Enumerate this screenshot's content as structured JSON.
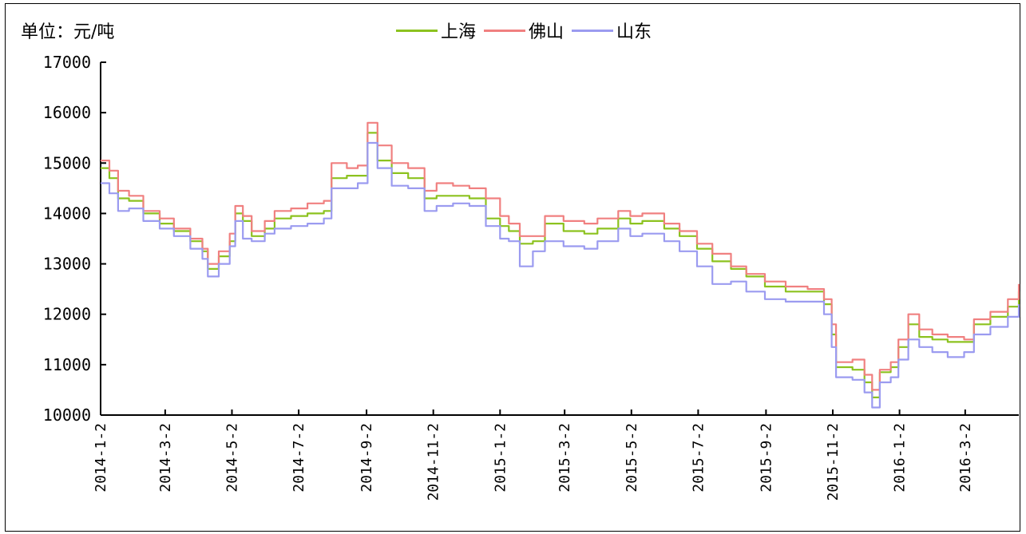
{
  "chart_data": {
    "type": "line",
    "unit_label": "单位：元/吨",
    "legend_placement": "top-center",
    "ylim": [
      10000,
      17000
    ],
    "yticks": [
      "17000",
      "16000",
      "15000",
      "14000",
      "13000",
      "12000",
      "11000",
      "10000"
    ],
    "xticks": [
      "2014-1-2",
      "2014-3-2",
      "2014-5-2",
      "2014-7-2",
      "2014-9-2",
      "2014-11-2",
      "2015-1-2",
      "2015-3-2",
      "2015-5-2",
      "2015-7-2",
      "2015-9-2",
      "2015-11-2",
      "2016-1-2",
      "2016-3-2"
    ],
    "x_end": "2016-4-20",
    "grid": false,
    "series": [
      {
        "name": "上海",
        "color": "#8cc21f",
        "points": [
          [
            "2014-1-2",
            14900
          ],
          [
            "2014-1-10",
            14700
          ],
          [
            "2014-1-18",
            14300
          ],
          [
            "2014-1-28",
            14250
          ],
          [
            "2014-2-10",
            14000
          ],
          [
            "2014-2-25",
            13800
          ],
          [
            "2014-3-10",
            13650
          ],
          [
            "2014-3-25",
            13450
          ],
          [
            "2014-4-5",
            13250
          ],
          [
            "2014-4-10",
            12900
          ],
          [
            "2014-4-20",
            13150
          ],
          [
            "2014-4-30",
            13450
          ],
          [
            "2014-5-5",
            14000
          ],
          [
            "2014-5-12",
            13850
          ],
          [
            "2014-5-20",
            13550
          ],
          [
            "2014-6-1",
            13700
          ],
          [
            "2014-6-10",
            13900
          ],
          [
            "2014-6-25",
            13950
          ],
          [
            "2014-7-10",
            14000
          ],
          [
            "2014-7-25",
            14050
          ],
          [
            "2014-8-1",
            14700
          ],
          [
            "2014-8-15",
            14750
          ],
          [
            "2014-8-25",
            14750
          ],
          [
            "2014-9-3",
            15600
          ],
          [
            "2014-9-12",
            15050
          ],
          [
            "2014-9-25",
            14800
          ],
          [
            "2014-10-10",
            14700
          ],
          [
            "2014-10-25",
            14300
          ],
          [
            "2014-11-5",
            14350
          ],
          [
            "2014-11-20",
            14350
          ],
          [
            "2014-12-5",
            14300
          ],
          [
            "2014-12-20",
            13900
          ],
          [
            "2015-1-2",
            13750
          ],
          [
            "2015-1-10",
            13650
          ],
          [
            "2015-1-20",
            13400
          ],
          [
            "2015-2-1",
            13450
          ],
          [
            "2015-2-12",
            13800
          ],
          [
            "2015-3-1",
            13650
          ],
          [
            "2015-3-20",
            13600
          ],
          [
            "2015-4-1",
            13700
          ],
          [
            "2015-4-20",
            13900
          ],
          [
            "2015-5-1",
            13800
          ],
          [
            "2015-5-12",
            13850
          ],
          [
            "2015-6-1",
            13700
          ],
          [
            "2015-6-15",
            13550
          ],
          [
            "2015-7-1",
            13300
          ],
          [
            "2015-7-15",
            13050
          ],
          [
            "2015-8-1",
            12900
          ],
          [
            "2015-8-15",
            12750
          ],
          [
            "2015-9-1",
            12550
          ],
          [
            "2015-9-20",
            12450
          ],
          [
            "2015-10-10",
            12450
          ],
          [
            "2015-10-25",
            12200
          ],
          [
            "2015-11-1",
            11600
          ],
          [
            "2015-11-5",
            10950
          ],
          [
            "2015-11-20",
            10900
          ],
          [
            "2015-12-1",
            10650
          ],
          [
            "2015-12-8",
            10350
          ],
          [
            "2015-12-15",
            10850
          ],
          [
            "2015-12-25",
            10950
          ],
          [
            "2016-1-1",
            11350
          ],
          [
            "2016-1-10",
            11800
          ],
          [
            "2016-1-20",
            11550
          ],
          [
            "2016-2-1",
            11500
          ],
          [
            "2016-2-15",
            11450
          ],
          [
            "2016-3-1",
            11450
          ],
          [
            "2016-3-10",
            11800
          ],
          [
            "2016-3-25",
            11950
          ],
          [
            "2016-4-10",
            12150
          ],
          [
            "2016-4-20",
            12450
          ]
        ]
      },
      {
        "name": "佛山",
        "color": "#f08080",
        "points": [
          [
            "2014-1-2",
            15050
          ],
          [
            "2014-1-10",
            14850
          ],
          [
            "2014-1-18",
            14450
          ],
          [
            "2014-1-28",
            14350
          ],
          [
            "2014-2-10",
            14050
          ],
          [
            "2014-2-25",
            13900
          ],
          [
            "2014-3-10",
            13700
          ],
          [
            "2014-3-25",
            13500
          ],
          [
            "2014-4-5",
            13300
          ],
          [
            "2014-4-10",
            13000
          ],
          [
            "2014-4-20",
            13250
          ],
          [
            "2014-4-30",
            13600
          ],
          [
            "2014-5-5",
            14150
          ],
          [
            "2014-5-12",
            13950
          ],
          [
            "2014-5-20",
            13650
          ],
          [
            "2014-6-1",
            13850
          ],
          [
            "2014-6-10",
            14050
          ],
          [
            "2014-6-25",
            14100
          ],
          [
            "2014-7-10",
            14200
          ],
          [
            "2014-7-25",
            14250
          ],
          [
            "2014-8-1",
            15000
          ],
          [
            "2014-8-15",
            14900
          ],
          [
            "2014-8-25",
            14950
          ],
          [
            "2014-9-3",
            15800
          ],
          [
            "2014-9-12",
            15350
          ],
          [
            "2014-9-25",
            15000
          ],
          [
            "2014-10-10",
            14900
          ],
          [
            "2014-10-25",
            14450
          ],
          [
            "2014-11-5",
            14600
          ],
          [
            "2014-11-20",
            14550
          ],
          [
            "2014-12-5",
            14500
          ],
          [
            "2014-12-20",
            14300
          ],
          [
            "2015-1-2",
            13950
          ],
          [
            "2015-1-10",
            13800
          ],
          [
            "2015-1-20",
            13550
          ],
          [
            "2015-2-1",
            13550
          ],
          [
            "2015-2-12",
            13950
          ],
          [
            "2015-3-1",
            13850
          ],
          [
            "2015-3-20",
            13800
          ],
          [
            "2015-4-1",
            13900
          ],
          [
            "2015-4-20",
            14050
          ],
          [
            "2015-5-1",
            13950
          ],
          [
            "2015-5-12",
            14000
          ],
          [
            "2015-6-1",
            13800
          ],
          [
            "2015-6-15",
            13650
          ],
          [
            "2015-7-1",
            13400
          ],
          [
            "2015-7-15",
            13200
          ],
          [
            "2015-8-1",
            12950
          ],
          [
            "2015-8-15",
            12800
          ],
          [
            "2015-9-1",
            12650
          ],
          [
            "2015-9-20",
            12550
          ],
          [
            "2015-10-10",
            12500
          ],
          [
            "2015-10-25",
            12300
          ],
          [
            "2015-11-1",
            11800
          ],
          [
            "2015-11-5",
            11050
          ],
          [
            "2015-11-20",
            11100
          ],
          [
            "2015-12-1",
            10800
          ],
          [
            "2015-12-8",
            10500
          ],
          [
            "2015-12-15",
            10900
          ],
          [
            "2015-12-25",
            11050
          ],
          [
            "2016-1-1",
            11500
          ],
          [
            "2016-1-10",
            12000
          ],
          [
            "2016-1-20",
            11700
          ],
          [
            "2016-2-1",
            11600
          ],
          [
            "2016-2-15",
            11550
          ],
          [
            "2016-3-1",
            11500
          ],
          [
            "2016-3-10",
            11900
          ],
          [
            "2016-3-25",
            12050
          ],
          [
            "2016-4-10",
            12300
          ],
          [
            "2016-4-20",
            12600
          ]
        ]
      },
      {
        "name": "山东",
        "color": "#9b9bf0",
        "points": [
          [
            "2014-1-2",
            14600
          ],
          [
            "2014-1-10",
            14400
          ],
          [
            "2014-1-18",
            14050
          ],
          [
            "2014-1-28",
            14100
          ],
          [
            "2014-2-10",
            13850
          ],
          [
            "2014-2-25",
            13700
          ],
          [
            "2014-3-10",
            13550
          ],
          [
            "2014-3-25",
            13300
          ],
          [
            "2014-4-5",
            13100
          ],
          [
            "2014-4-10",
            12750
          ],
          [
            "2014-4-20",
            13000
          ],
          [
            "2014-4-30",
            13350
          ],
          [
            "2014-5-5",
            13850
          ],
          [
            "2014-5-12",
            13500
          ],
          [
            "2014-5-20",
            13450
          ],
          [
            "2014-6-1",
            13600
          ],
          [
            "2014-6-10",
            13700
          ],
          [
            "2014-6-25",
            13750
          ],
          [
            "2014-7-10",
            13800
          ],
          [
            "2014-7-25",
            13900
          ],
          [
            "2014-8-1",
            14500
          ],
          [
            "2014-8-15",
            14500
          ],
          [
            "2014-8-25",
            14600
          ],
          [
            "2014-9-3",
            15400
          ],
          [
            "2014-9-12",
            14900
          ],
          [
            "2014-9-25",
            14550
          ],
          [
            "2014-10-10",
            14500
          ],
          [
            "2014-10-25",
            14050
          ],
          [
            "2014-11-5",
            14150
          ],
          [
            "2014-11-20",
            14200
          ],
          [
            "2014-12-5",
            14150
          ],
          [
            "2014-12-20",
            13750
          ],
          [
            "2015-1-2",
            13500
          ],
          [
            "2015-1-10",
            13450
          ],
          [
            "2015-1-20",
            12950
          ],
          [
            "2015-2-1",
            13250
          ],
          [
            "2015-2-12",
            13450
          ],
          [
            "2015-3-1",
            13350
          ],
          [
            "2015-3-20",
            13300
          ],
          [
            "2015-4-1",
            13450
          ],
          [
            "2015-4-20",
            13700
          ],
          [
            "2015-5-1",
            13550
          ],
          [
            "2015-5-12",
            13600
          ],
          [
            "2015-6-1",
            13450
          ],
          [
            "2015-6-15",
            13250
          ],
          [
            "2015-7-1",
            12950
          ],
          [
            "2015-7-15",
            12600
          ],
          [
            "2015-8-1",
            12650
          ],
          [
            "2015-8-15",
            12450
          ],
          [
            "2015-9-1",
            12300
          ],
          [
            "2015-9-20",
            12250
          ],
          [
            "2015-10-10",
            12250
          ],
          [
            "2015-10-25",
            12000
          ],
          [
            "2015-11-1",
            11350
          ],
          [
            "2015-11-5",
            10750
          ],
          [
            "2015-11-20",
            10700
          ],
          [
            "2015-12-1",
            10450
          ],
          [
            "2015-12-8",
            10150
          ],
          [
            "2015-12-15",
            10650
          ],
          [
            "2015-12-25",
            10750
          ],
          [
            "2016-1-1",
            11100
          ],
          [
            "2016-1-10",
            11500
          ],
          [
            "2016-1-20",
            11350
          ],
          [
            "2016-2-1",
            11250
          ],
          [
            "2016-2-15",
            11150
          ],
          [
            "2016-3-1",
            11250
          ],
          [
            "2016-3-10",
            11600
          ],
          [
            "2016-3-25",
            11750
          ],
          [
            "2016-4-10",
            11950
          ],
          [
            "2016-4-20",
            12200
          ]
        ]
      }
    ]
  }
}
